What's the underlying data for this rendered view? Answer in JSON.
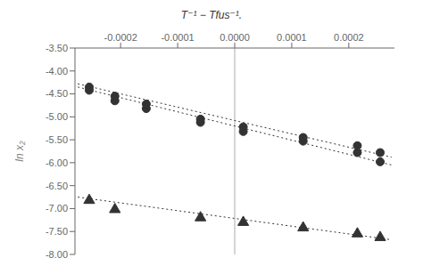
{
  "chart_data": {
    "type": "scatter",
    "xlabel": "T⁻¹ − Tfus⁻¹.",
    "ylabel": "ln x₂",
    "xlim": [
      -0.00028,
      0.00028
    ],
    "ylim": [
      -8.0,
      -3.5
    ],
    "xticks": [
      -0.0002,
      -0.0001,
      {
        "value": 0,
        "label": "0.0000"
      },
      0.0001,
      0.0002
    ],
    "yticks": [
      {
        "value": -8,
        "label": "-8.00"
      },
      {
        "value": -7.5,
        "label": "-7.50"
      },
      {
        "value": -7,
        "label": "-7.00"
      },
      {
        "value": -6.5,
        "label": "-6.50"
      },
      {
        "value": -6,
        "label": "-6.00"
      },
      {
        "value": -5.5,
        "label": "-5.50"
      },
      {
        "value": -5,
        "label": "-5.00"
      },
      {
        "value": -4.5,
        "label": "-4.50"
      },
      {
        "value": -4,
        "label": "-4.00"
      },
      {
        "value": -3.5,
        "label": "-3.50"
      }
    ],
    "grid": false,
    "vline_x": 0.0,
    "vline_color": "#aaaaaa",
    "series": [
      {
        "marker": "circle",
        "color": "#333333",
        "x": [
          -0.000255,
          -0.00021,
          -0.000155,
          -6e-05,
          1.5e-05,
          0.00012,
          0.000215,
          0.000255
        ],
        "values": [
          -4.42,
          -4.65,
          -4.82,
          -5.12,
          -5.32,
          -5.53,
          -5.78,
          -5.98
        ],
        "trend": {
          "x": [
            -0.000275,
            0.000275
          ],
          "values": [
            -4.35,
            -6.05
          ],
          "line_style": "dotted"
        }
      },
      {
        "marker": "circle",
        "color": "#333333",
        "x": [
          -0.000255,
          -0.00021,
          -0.000155,
          -6e-05,
          1.5e-05,
          0.00012,
          0.000215,
          0.000255
        ],
        "values": [
          -4.35,
          -4.55,
          -4.72,
          -5.05,
          -5.22,
          -5.45,
          -5.63,
          -5.78
        ],
        "trend": {
          "x": [
            -0.000275,
            0.000275
          ],
          "values": [
            -4.28,
            -5.88
          ],
          "line_style": "dotted"
        }
      },
      {
        "marker": "triangle",
        "color": "#333333",
        "x": [
          -0.000255,
          -0.00021,
          -6e-05,
          1.5e-05,
          0.00012,
          0.000215,
          0.000255
        ],
        "values": [
          -6.82,
          -7.02,
          -7.2,
          -7.3,
          -7.42,
          -7.55,
          -7.63
        ],
        "trend": {
          "x": [
            -0.000275,
            0.000275
          ],
          "values": [
            -6.75,
            -7.68
          ],
          "line_style": "dotted"
        }
      }
    ]
  }
}
